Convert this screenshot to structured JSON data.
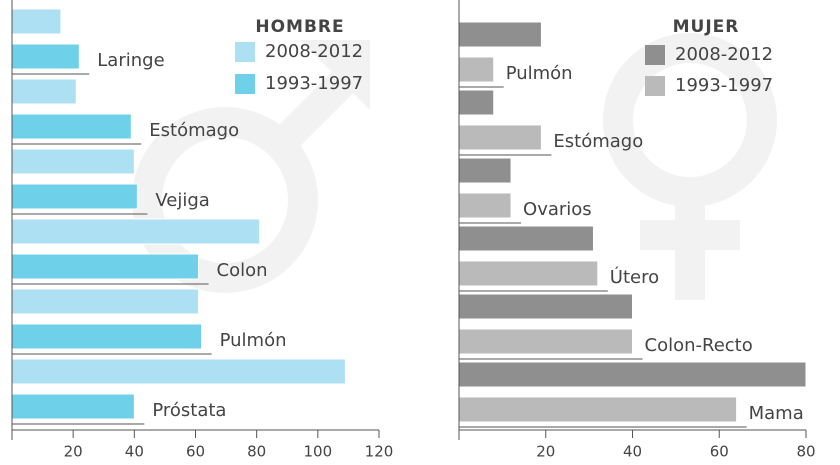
{
  "chart_data": [
    {
      "type": "bar",
      "orientation": "horizontal",
      "title": "HOMBRE",
      "categories": [
        "Laringe",
        "Estómago",
        "Vejiga",
        "Colon",
        "Pulmón",
        "Próstata"
      ],
      "series": [
        {
          "name": "2008-2012",
          "color": "#ade0f3",
          "values": [
            16,
            21,
            40,
            81,
            61,
            109
          ]
        },
        {
          "name": "1993-1997",
          "color": "#6fd0ea",
          "values": [
            22,
            39,
            41,
            61,
            62,
            40
          ]
        }
      ],
      "xlim": [
        0,
        120
      ],
      "xticks": [
        20,
        40,
        60,
        80,
        100,
        120
      ]
    },
    {
      "type": "bar",
      "orientation": "horizontal",
      "title": "MUJER",
      "categories": [
        "Pulmón",
        "Estómago",
        "Ovarios",
        "Útero",
        "Colon-Recto",
        "Mama"
      ],
      "series": [
        {
          "name": "2008-2012",
          "color": "#8f8f90",
          "values": [
            19,
            8,
            12,
            31,
            40,
            80
          ]
        },
        {
          "name": "1993-1997",
          "color": "#bababb",
          "values": [
            8,
            19,
            12,
            32,
            40,
            64
          ]
        }
      ],
      "xlim": [
        0,
        80
      ],
      "xticks": [
        20,
        40,
        60,
        80
      ]
    }
  ]
}
